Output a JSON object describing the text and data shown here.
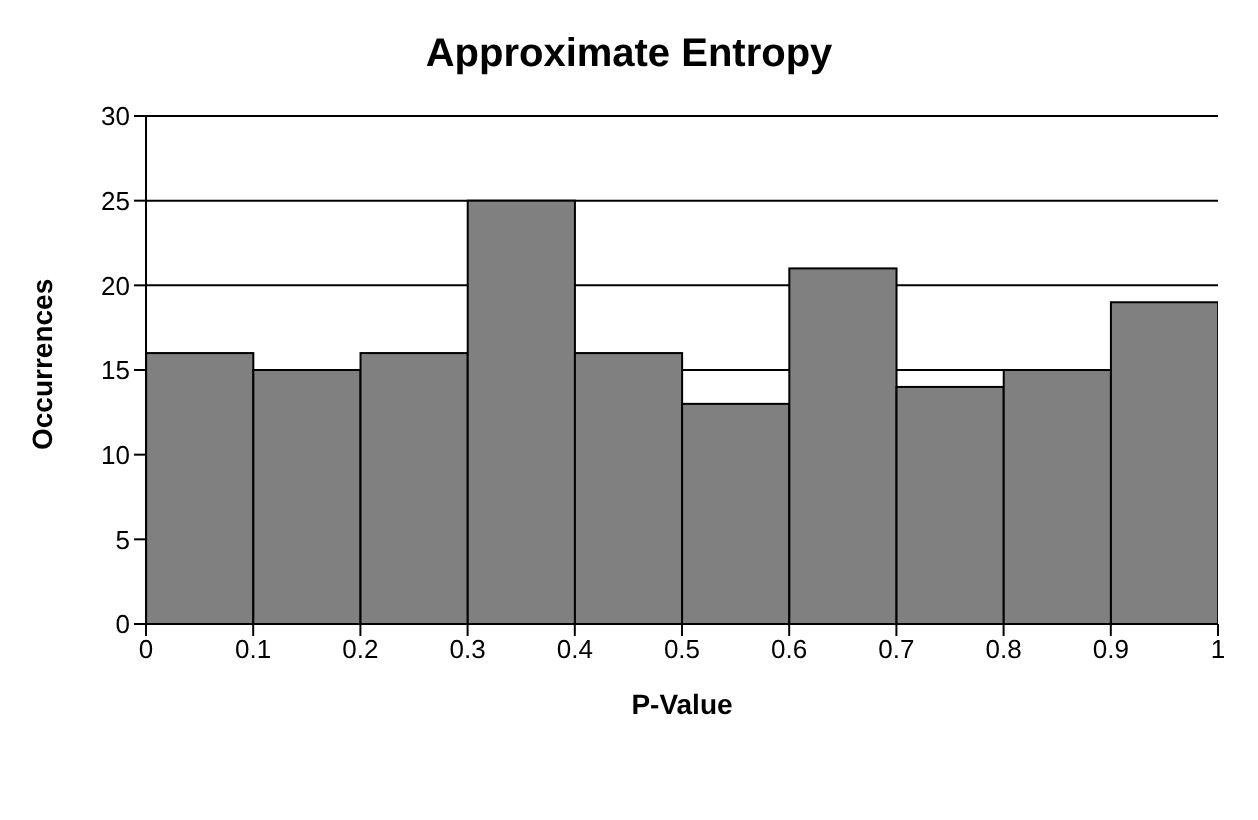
{
  "chart_data": {
    "type": "histogram",
    "title": "Approximate Entropy",
    "xlabel": "P-Value",
    "ylabel": "Occurrences",
    "bins": [
      0,
      0.1,
      0.2,
      0.3,
      0.4,
      0.5,
      0.6,
      0.7,
      0.8,
      0.9,
      1
    ],
    "values": [
      16,
      15,
      16,
      25,
      16,
      13,
      21,
      14,
      15,
      19
    ],
    "color": "#808080",
    "xlim": [
      0,
      1
    ],
    "xticks": [
      0,
      0.1,
      0.2,
      0.3,
      0.4,
      0.5,
      0.6,
      0.7,
      0.8,
      0.9,
      1
    ],
    "ylim": [
      0,
      30
    ],
    "yticks": [
      0,
      5,
      10,
      15,
      20,
      25,
      30
    ],
    "grid": "y"
  }
}
